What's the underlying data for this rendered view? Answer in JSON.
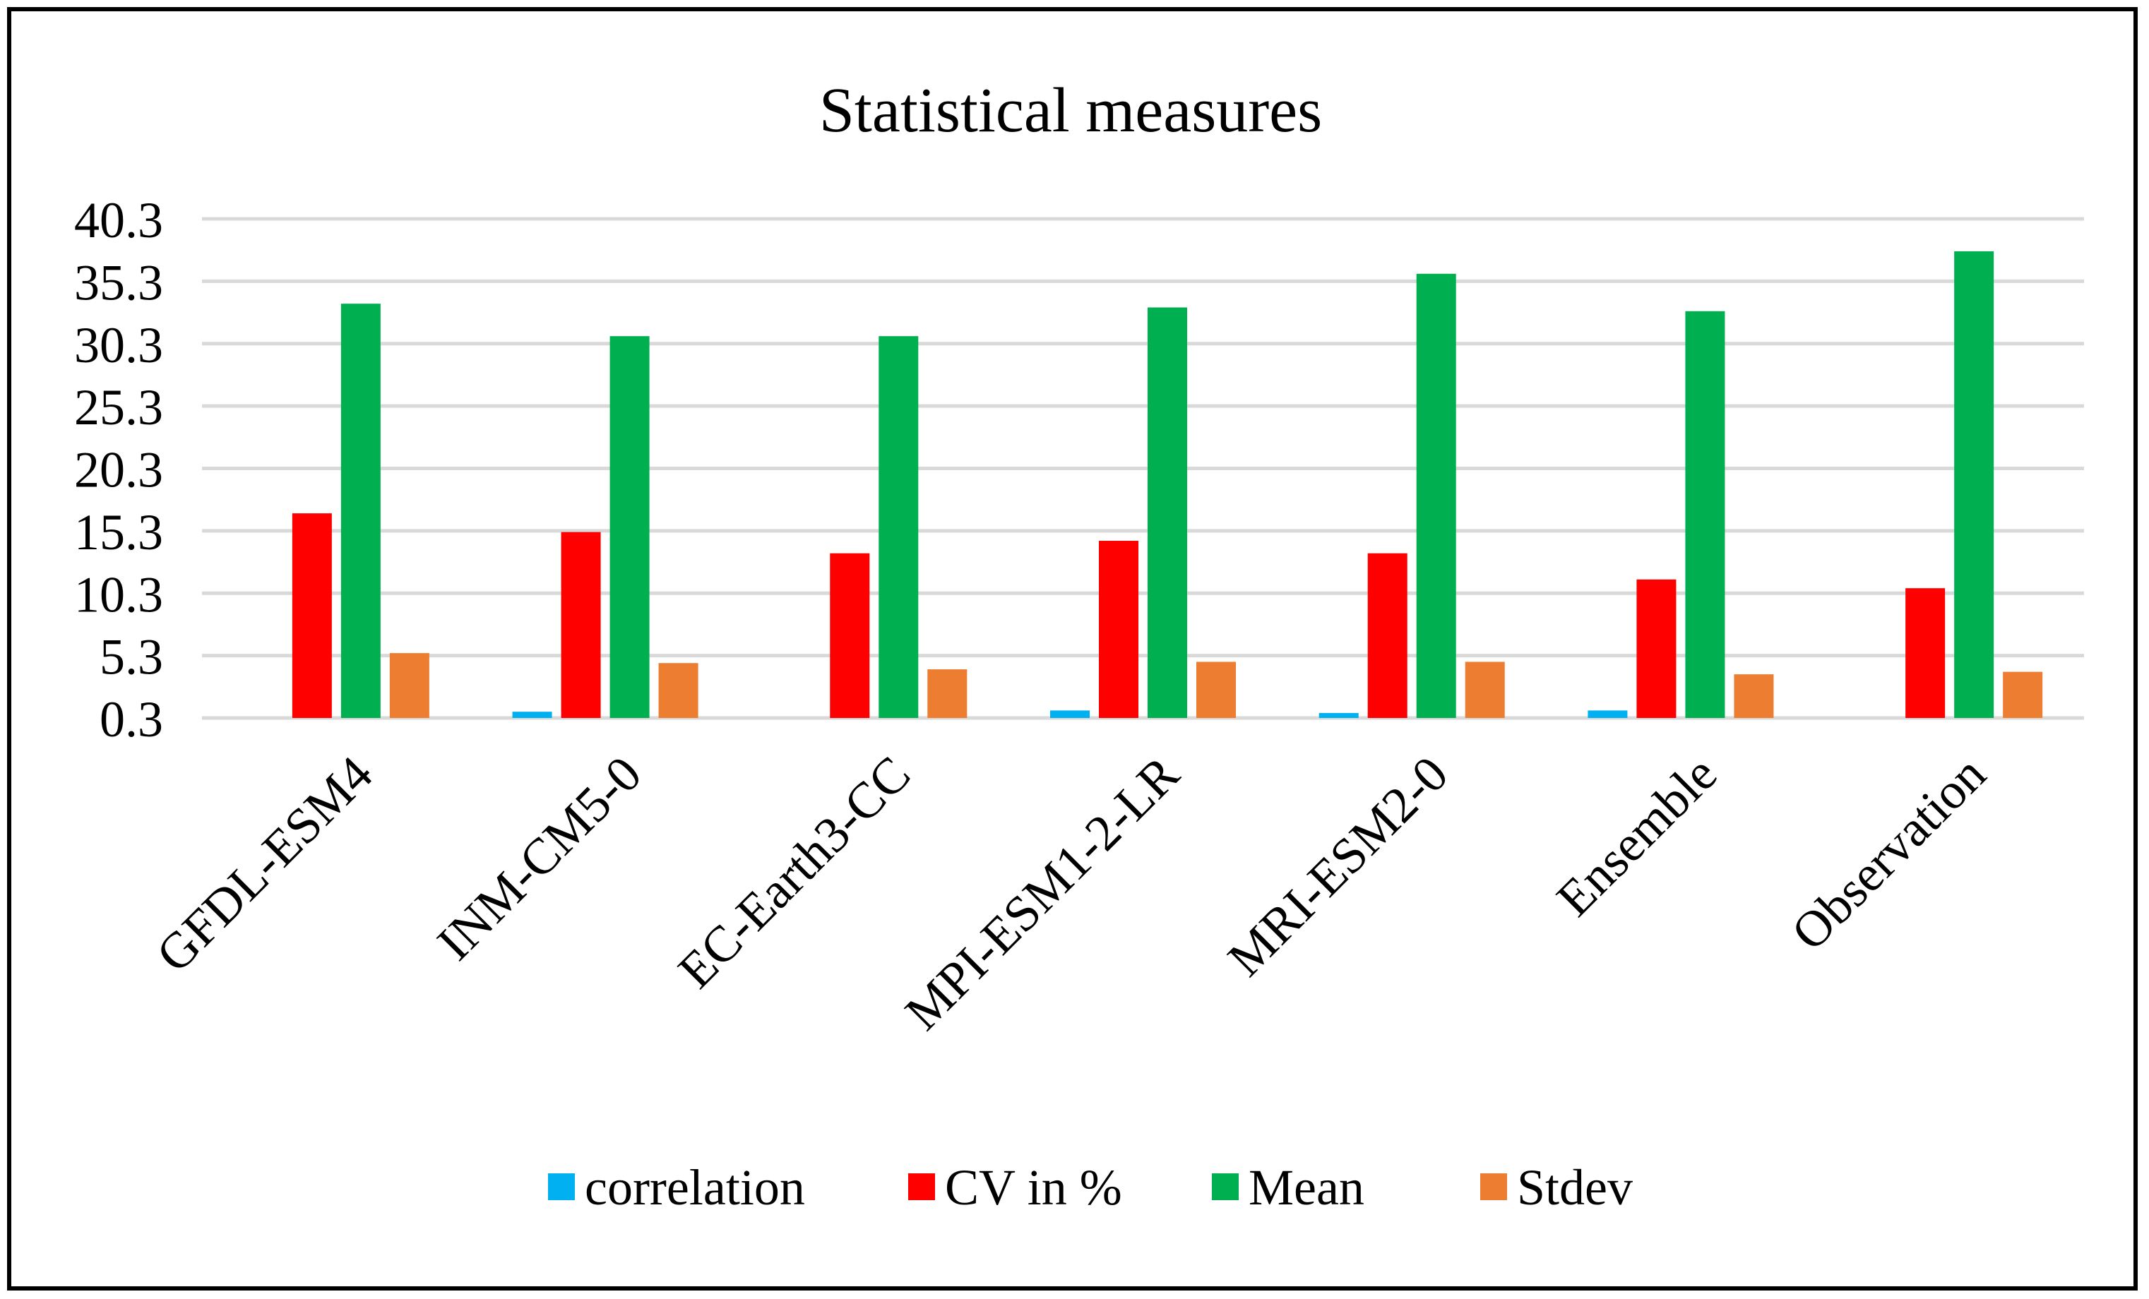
{
  "chart_data": {
    "type": "bar",
    "title": "Statistical measures",
    "xlabel": "",
    "ylabel": "",
    "ylim": [
      0.3,
      40.3
    ],
    "yticks": [
      0.3,
      5.3,
      10.3,
      15.3,
      20.3,
      25.3,
      30.3,
      35.3,
      40.3
    ],
    "ytick_labels": [
      "0.3",
      "5.3",
      "10.3",
      "15.3",
      "20.3",
      "25.3",
      "30.3",
      "35.3",
      "40.3"
    ],
    "grid": true,
    "legend_position": "bottom",
    "categories": [
      "GFDL-ESM4",
      "INM-CM5-0",
      "EC-Earth3-CC",
      "MPI-ESM1-2-LR",
      "MRI-ESM2-0",
      "Ensemble",
      "Observation"
    ],
    "series": [
      {
        "name": "correlation",
        "color": "#00b0f0",
        "values": [
          0.0,
          0.5,
          0.0,
          0.6,
          0.4,
          0.6,
          0.0
        ]
      },
      {
        "name": "CV in %",
        "color": "#ff0000",
        "values": [
          16.4,
          14.9,
          13.2,
          14.2,
          13.2,
          11.1,
          10.4
        ]
      },
      {
        "name": "Mean",
        "color": "#00b050",
        "values": [
          33.2,
          30.6,
          30.6,
          32.9,
          35.6,
          32.6,
          37.4
        ]
      },
      {
        "name": "Stdev",
        "color": "#ed7d31",
        "values": [
          5.2,
          4.4,
          3.9,
          4.5,
          4.5,
          3.5,
          3.7
        ]
      }
    ]
  }
}
